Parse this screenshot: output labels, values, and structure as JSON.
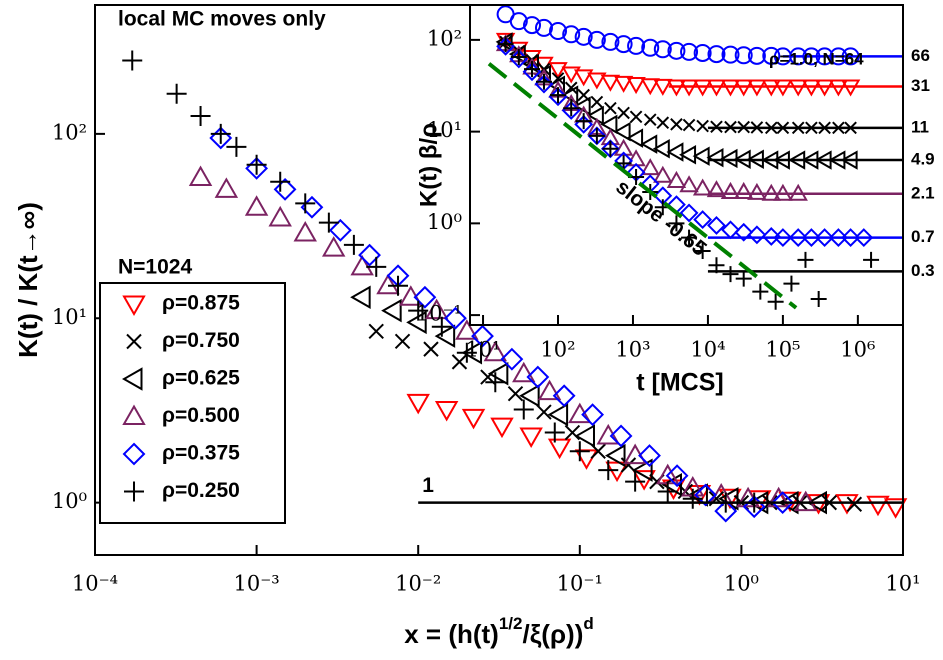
{
  "chart_data": [
    {
      "type": "scatter",
      "log_x": true,
      "log_y": true,
      "title": "local MC moves only",
      "legend_title": "N=1024",
      "x_label": [
        "x = (h(t)",
        "1/2",
        "/ξ(ρ))",
        "d"
      ],
      "y_label": "K(t) / K(t→∞)",
      "xlim": [
        0.0001,
        10
      ],
      "ylim": [
        0.52,
        500
      ],
      "xticks": [
        {
          "value": 0.0001,
          "label": "10⁻⁴"
        },
        {
          "value": 0.001,
          "label": "10⁻³"
        },
        {
          "value": 0.01,
          "label": "10⁻²"
        },
        {
          "value": 0.1,
          "label": "10⁻¹"
        },
        {
          "value": 1,
          "label": "10⁰"
        },
        {
          "value": 10,
          "label": "10¹"
        }
      ],
      "yticks": [
        {
          "value": 1,
          "label": "10⁰"
        },
        {
          "value": 10,
          "label": "10¹"
        },
        {
          "value": 100,
          "label": "10²"
        }
      ],
      "legend": "left",
      "reference_line": {
        "x": [
          0.01,
          10
        ],
        "values": [
          1,
          1
        ],
        "label": "1"
      },
      "series": [
        {
          "name": "ρ=0.875",
          "color": "#ff0000",
          "marker": "triangle-down",
          "x": [
            0.01,
            0.015,
            0.022,
            0.033,
            0.05,
            0.075,
            0.11,
            0.17,
            0.25,
            0.38,
            0.55,
            0.85,
            1.3,
            2,
            3,
            4.5,
            7,
            9
          ],
          "values": [
            3.5,
            3.2,
            2.9,
            2.6,
            2.3,
            2.0,
            1.75,
            1.5,
            1.35,
            1.2,
            1.12,
            1.07,
            1.05,
            1.03,
            1.0,
            1.0,
            0.98,
            0.95
          ]
        },
        {
          "name": "ρ=0.750",
          "color": "#000000",
          "marker": "x",
          "x": [
            0.0055,
            0.008,
            0.012,
            0.018,
            0.027,
            0.04,
            0.06,
            0.09,
            0.13,
            0.2,
            0.3,
            0.45,
            0.7,
            1,
            1.5,
            2.3,
            3.5,
            5
          ],
          "values": [
            8.5,
            7.5,
            6.8,
            5.8,
            4.8,
            3.9,
            3.1,
            2.4,
            1.9,
            1.6,
            1.3,
            1.15,
            1.05,
            1.0,
            1.0,
            1.0,
            1.0,
            0.98
          ]
        },
        {
          "name": "ρ=0.625",
          "color": "#000000",
          "marker": "triangle-left",
          "x": [
            0.0045,
            0.007,
            0.01,
            0.015,
            0.022,
            0.032,
            0.05,
            0.075,
            0.11,
            0.17,
            0.25,
            0.38,
            0.55,
            0.85,
            1.3,
            2,
            3
          ],
          "values": [
            13,
            11,
            9.5,
            8,
            6.5,
            5,
            3.8,
            3,
            2.3,
            1.8,
            1.5,
            1.25,
            1.1,
            1.05,
            1.0,
            1.0,
            1.0
          ]
        },
        {
          "name": "ρ=0.500",
          "color": "#7b2362",
          "marker": "triangle-up",
          "x": [
            0.00045,
            0.00065,
            0.001,
            0.0014,
            0.002,
            0.003,
            0.0045,
            0.0065,
            0.009,
            0.013,
            0.02,
            0.03,
            0.045,
            0.065,
            0.1,
            0.15,
            0.22,
            0.35,
            0.5,
            0.75,
            1.1,
            1.7,
            2.5
          ],
          "values": [
            58,
            50,
            40,
            35,
            29,
            24,
            19,
            15,
            13,
            11,
            8.5,
            6.5,
            5,
            4,
            3,
            2.3,
            1.8,
            1.4,
            1.2,
            1.1,
            1.05,
            1.05,
            1.0
          ]
        },
        {
          "name": "ρ=0.375",
          "color": "#0000ff",
          "marker": "diamond",
          "x": [
            0.0006,
            0.001,
            0.0015,
            0.0022,
            0.0033,
            0.005,
            0.0075,
            0.011,
            0.017,
            0.025,
            0.038,
            0.055,
            0.08,
            0.12,
            0.18,
            0.27,
            0.4,
            0.6,
            0.8,
            1.2,
            1.8
          ],
          "values": [
            95,
            65,
            50,
            40,
            30,
            22,
            17,
            13,
            10,
            8,
            6,
            4.8,
            3.8,
            3,
            2.3,
            1.8,
            1.4,
            1.1,
            0.9,
            0.95,
            1.0
          ]
        },
        {
          "name": "ρ=0.250",
          "color": "#000000",
          "marker": "plus",
          "x": [
            0.00017,
            0.00032,
            0.00045,
            0.0006,
            0.00075,
            0.001,
            0.0014,
            0.002,
            0.0028,
            0.004,
            0.0055,
            0.0075,
            0.01,
            0.014,
            0.02,
            0.03,
            0.045,
            0.07,
            0.1,
            0.15,
            0.22,
            0.35,
            0.5,
            0.8,
            1.2
          ],
          "values": [
            250,
            165,
            125,
            100,
            85,
            68,
            55,
            42,
            33,
            25,
            19,
            15,
            11,
            9,
            6.5,
            4.5,
            3.2,
            2.4,
            1.9,
            1.5,
            1.3,
            1.15,
            1.05,
            1.0,
            1.0
          ]
        }
      ]
    },
    {
      "type": "scatter",
      "log_x": true,
      "log_y": true,
      "x_label": "t [MCS]",
      "y_label": "K(t) β/ρ",
      "xlim": [
        6.7,
        4000000
      ],
      "ylim": [
        0.078,
        240
      ],
      "xticks": [
        {
          "value": 10,
          "label": "10¹"
        },
        {
          "value": 100,
          "label": "10²"
        },
        {
          "value": 1000,
          "label": "10³"
        },
        {
          "value": 10000,
          "label": "10⁴"
        },
        {
          "value": 100000,
          "label": "10⁵"
        },
        {
          "value": 1000000,
          "label": "10⁶"
        }
      ],
      "yticks": [
        {
          "value": 0.1,
          "label": "10⁻¹"
        },
        {
          "value": 1,
          "label": "10⁰"
        },
        {
          "value": 10,
          "label": "10¹"
        },
        {
          "value": 100,
          "label": "10²"
        }
      ],
      "fit_line": {
        "x": [
          12,
          150000
        ],
        "values": [
          55,
          0.12
        ],
        "label": "slope -0.65",
        "color": "#008000"
      },
      "series": [
        {
          "name": "ρ=1.0, N=64",
          "color": "#0000ff",
          "marker": "circle",
          "plateau": 66,
          "plateau_from": 100000,
          "x": [
            20,
            30,
            45,
            65,
            100,
            150,
            220,
            330,
            500,
            750,
            1100,
            1700,
            2500,
            3800,
            5600,
            8500,
            13000,
            20000,
            30000,
            45000,
            70000,
            100000,
            160000,
            240000,
            360000,
            550000,
            800000
          ],
          "values": [
            190,
            160,
            145,
            135,
            125,
            115,
            108,
            100,
            95,
            90,
            86,
            82,
            79,
            76,
            74,
            72,
            70,
            69,
            68,
            67,
            67,
            66,
            66,
            66,
            66,
            66,
            66
          ]
        },
        {
          "color": "#ff0000",
          "marker": "triangle-down",
          "plateau": 31,
          "plateau_from": 3000,
          "x": [
            20,
            30,
            45,
            65,
            100,
            150,
            220,
            330,
            500,
            750,
            1100,
            1700,
            2500,
            3800,
            5600,
            8500,
            13000,
            20000,
            30000,
            45000,
            70000,
            100000,
            160000,
            240000,
            360000,
            550000,
            800000
          ],
          "values": [
            100,
            80,
            65,
            55,
            48,
            43,
            40,
            37,
            35,
            34,
            33,
            32,
            31.5,
            31,
            31,
            31,
            31,
            31,
            31,
            31,
            31,
            31,
            31,
            31,
            31,
            31,
            31
          ]
        },
        {
          "color": "#000000",
          "marker": "x",
          "plateau": 11,
          "plateau_from": 10000,
          "x": [
            20,
            30,
            45,
            65,
            100,
            150,
            220,
            330,
            500,
            750,
            1100,
            1700,
            2500,
            3800,
            5600,
            8500,
            13000,
            20000,
            30000,
            45000,
            70000,
            100000,
            160000,
            240000,
            360000,
            550000,
            800000
          ],
          "values": [
            95,
            75,
            60,
            48,
            38,
            30,
            25,
            21,
            18,
            16,
            14.5,
            13.5,
            12.5,
            12,
            11.8,
            11.5,
            11.3,
            11.2,
            11.2,
            11.1,
            11,
            11,
            11,
            11,
            11,
            11,
            11
          ]
        },
        {
          "color": "#000000",
          "marker": "triangle-left",
          "plateau": 4.9,
          "plateau_from": 10000,
          "x": [
            20,
            30,
            45,
            65,
            100,
            150,
            220,
            330,
            500,
            750,
            1100,
            1700,
            2500,
            3800,
            5600,
            8500,
            13000,
            20000,
            30000,
            45000,
            70000,
            100000,
            160000,
            240000,
            360000,
            550000,
            800000
          ],
          "values": [
            95,
            70,
            55,
            42,
            32,
            25,
            19,
            15,
            12,
            10,
            8.5,
            7.3,
            6.5,
            6,
            5.6,
            5.4,
            5.2,
            5.1,
            5,
            5,
            4.9,
            4.9,
            4.9,
            4.9,
            4.9,
            4.9,
            4.9
          ]
        },
        {
          "color": "#7b2362",
          "marker": "triangle-up",
          "plateau": 2.1,
          "plateau_from": 10000,
          "x": [
            20,
            30,
            45,
            65,
            100,
            150,
            220,
            330,
            500,
            750,
            1100,
            1700,
            2500,
            3800,
            5600,
            8500,
            13000,
            20000,
            30000,
            45000,
            70000,
            100000,
            160000
          ],
          "values": [
            90,
            68,
            50,
            38,
            28,
            20,
            15,
            11,
            8.5,
            6.5,
            5,
            4,
            3.3,
            2.9,
            2.6,
            2.4,
            2.3,
            2.2,
            2.2,
            2.15,
            2.1,
            2.1,
            2.1
          ]
        },
        {
          "color": "#0000ff",
          "marker": "diamond",
          "plateau": 0.7,
          "plateau_from": 10000,
          "x": [
            20,
            30,
            45,
            65,
            100,
            150,
            220,
            330,
            500,
            750,
            1100,
            1700,
            2500,
            3800,
            5600,
            8500,
            13000,
            20000,
            30000,
            45000,
            70000,
            100000,
            160000,
            240000,
            360000,
            550000,
            800000,
            1200000
          ],
          "values": [
            85,
            62,
            45,
            33,
            24,
            17,
            12,
            9,
            6.5,
            4.8,
            3.6,
            2.7,
            2,
            1.6,
            1.3,
            1.1,
            0.95,
            0.85,
            0.8,
            0.75,
            0.72,
            0.7,
            0.7,
            0.7,
            0.7,
            0.7,
            0.7,
            0.7
          ]
        },
        {
          "color": "#000000",
          "marker": "plus",
          "plateau": 0.3,
          "plateau_from": 10000,
          "x": [
            20,
            30,
            45,
            65,
            100,
            150,
            220,
            330,
            500,
            750,
            1100,
            1700,
            2500,
            3800,
            5600,
            8500,
            13000,
            20000,
            30000,
            50000,
            80000,
            130000,
            200000,
            300000,
            1500000
          ],
          "values": [
            90,
            65,
            48,
            35,
            25,
            18,
            13,
            9,
            6.5,
            4.5,
            3.2,
            2.2,
            1.5,
            1,
            0.7,
            0.5,
            0.35,
            0.28,
            0.25,
            0.18,
            0.14,
            0.22,
            0.4,
            0.15,
            0.4
          ]
        }
      ]
    }
  ]
}
